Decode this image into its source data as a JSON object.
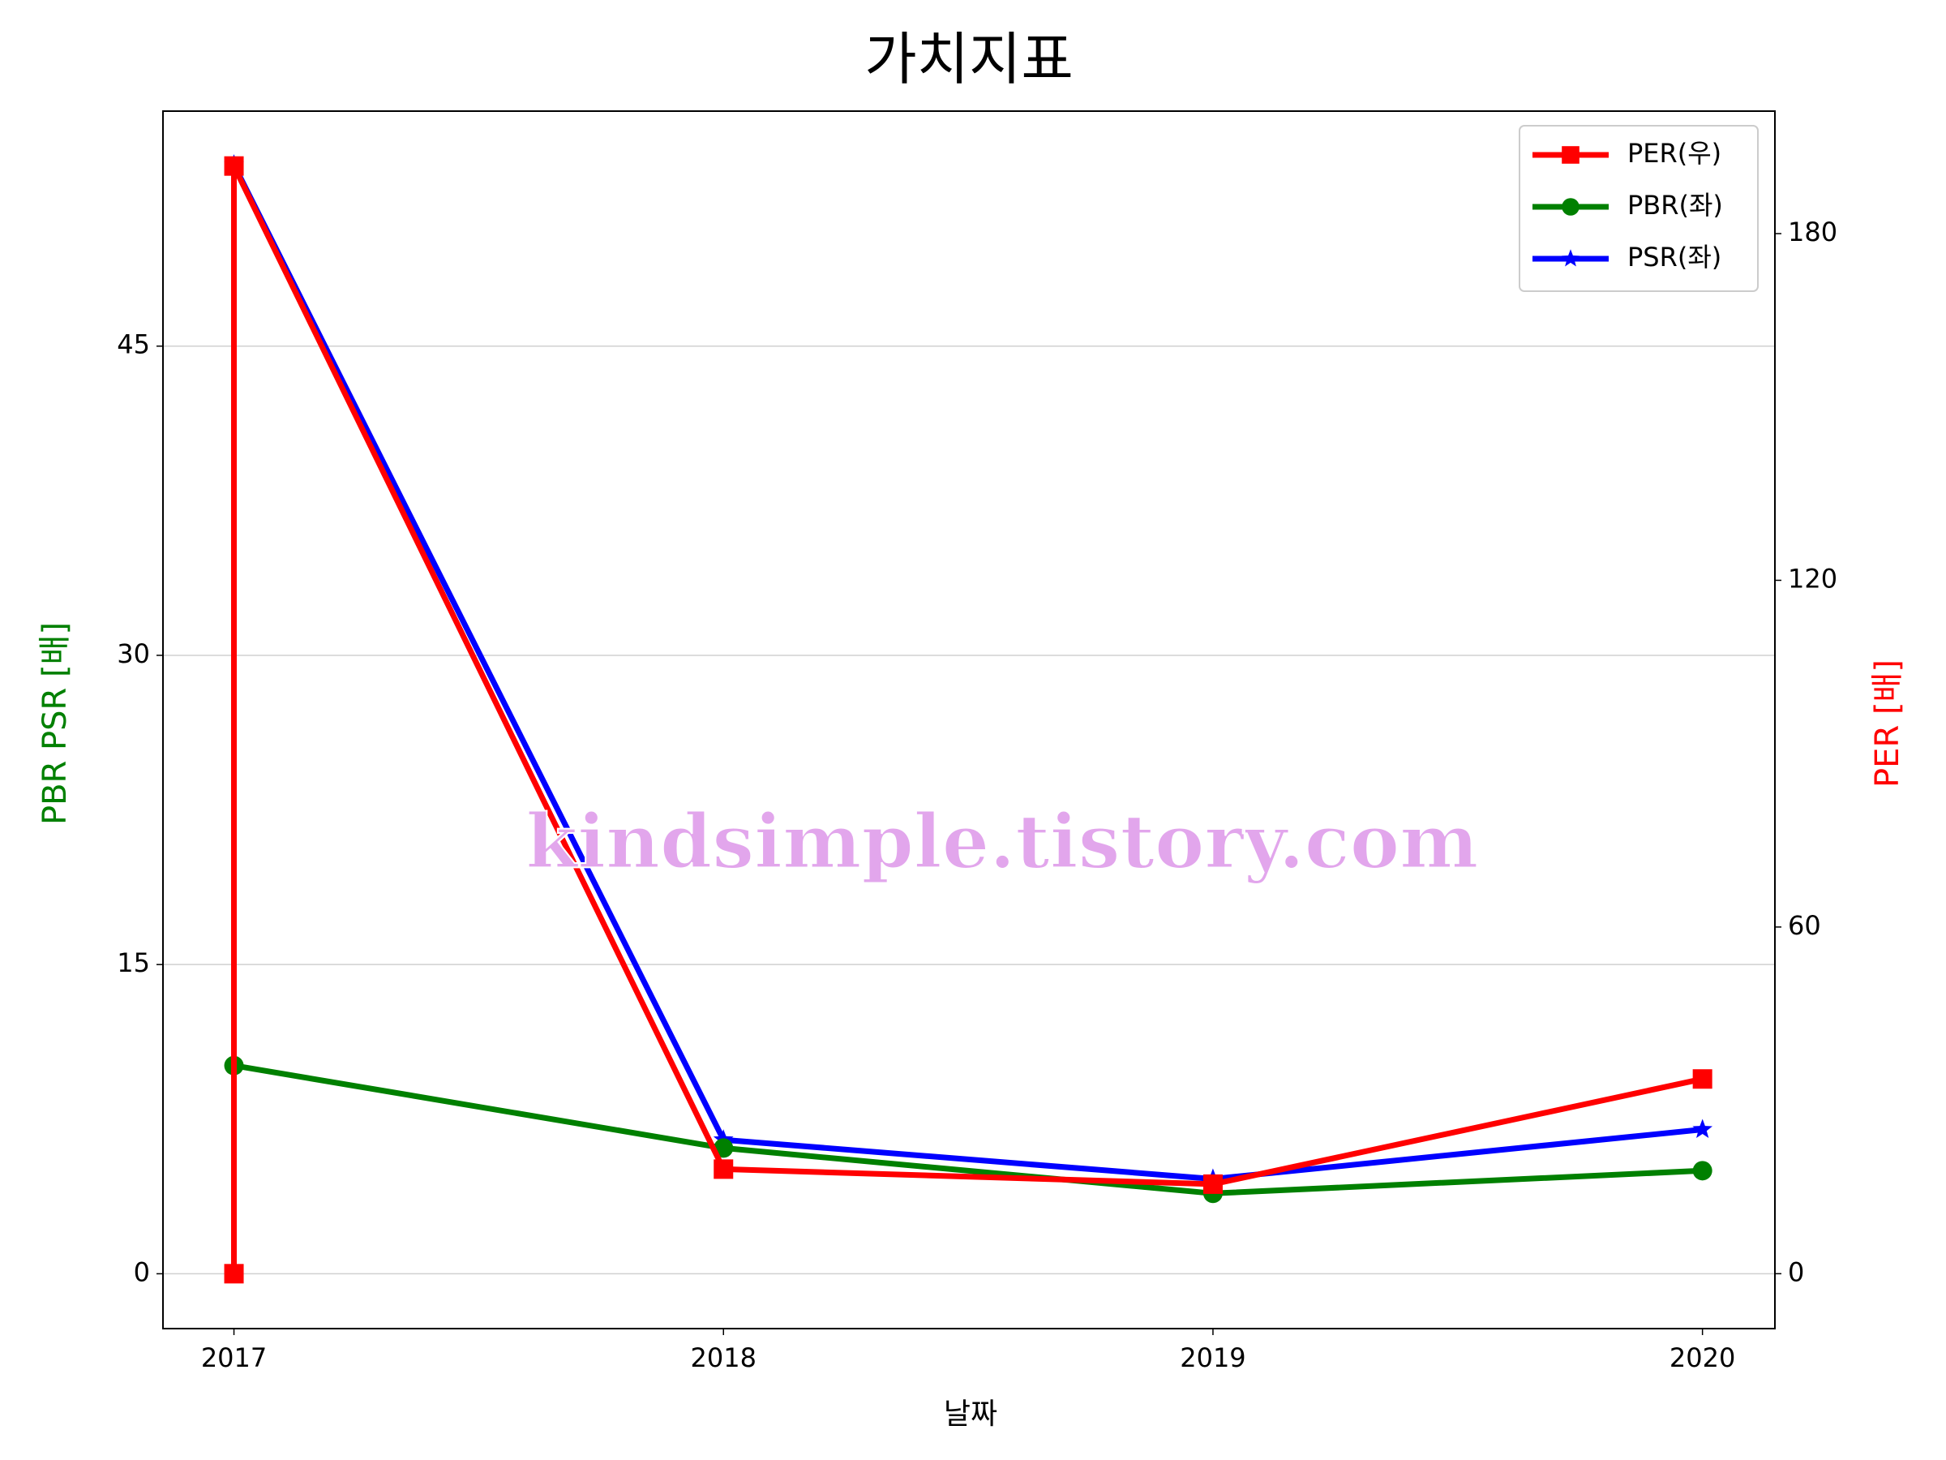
{
  "chart_data": {
    "type": "line",
    "title": "가치지표",
    "xlabel": "날짜",
    "ylabel": "PBR PSR [배]",
    "y2label": "PER [배]",
    "ylabel_color": "green",
    "y2label_color": "red",
    "watermark": "kindsimple.tistory.com",
    "xlim": [
      2016.855,
      2020.148
    ],
    "xticks": [
      2017,
      2018,
      2019,
      2020
    ],
    "ylim": [
      -2.66,
      56.4
    ],
    "yticks": [
      0,
      15,
      30,
      45
    ],
    "y2lim": [
      -9.5,
      201.2
    ],
    "y2ticks": [
      0,
      60,
      120,
      180
    ],
    "grid": true,
    "legend": "upper right",
    "series": [
      {
        "name": "PER(우)",
        "color": "red",
        "marker": "square",
        "axis": "y2",
        "x": [
          2017,
          2017,
          2018,
          2019,
          2020
        ],
        "values": [
          0,
          191.7,
          18.1,
          15.5,
          33.7
        ]
      },
      {
        "name": "PBR(좌)",
        "color": "green",
        "marker": "circle",
        "x": [
          2017,
          2018,
          2019,
          2020
        ],
        "values": [
          10.1,
          6.1,
          3.9,
          5.0
        ]
      },
      {
        "name": "PSR(좌)",
        "color": "blue",
        "marker": "star",
        "x": [
          2017,
          2018,
          2019,
          2020
        ],
        "values": [
          53.8,
          6.5,
          4.6,
          7.0
        ]
      }
    ]
  }
}
